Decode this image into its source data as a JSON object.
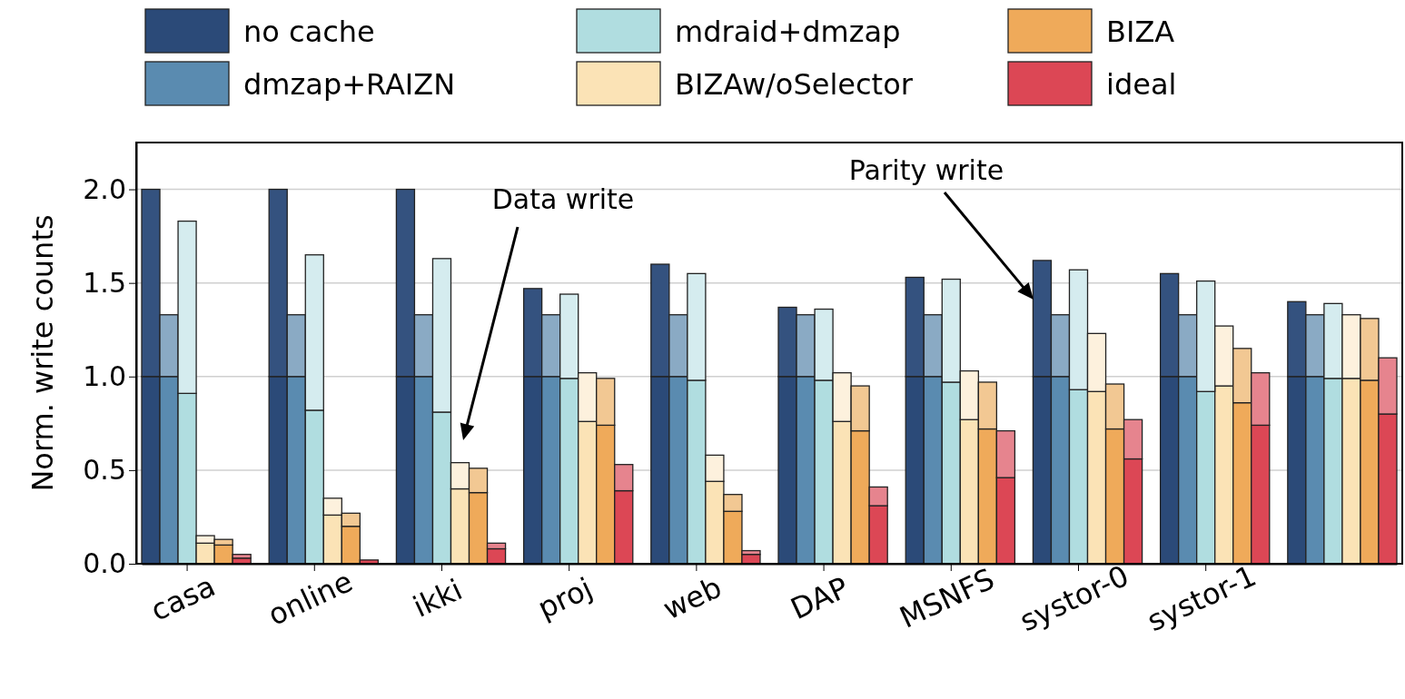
{
  "chart_data": {
    "type": "bar",
    "ylabel": "Norm. write counts",
    "stacked": true,
    "categories": [
      null,
      null,
      "casa",
      null,
      null,
      null,
      null,
      null,
      null,
      "online",
      null,
      null,
      null,
      null,
      null,
      null,
      "ikki",
      null,
      null,
      null,
      null,
      null,
      null,
      "proj",
      null,
      null,
      null,
      null,
      null,
      null,
      "web",
      null,
      null,
      null,
      null,
      null,
      null,
      "DAP",
      null,
      null,
      null,
      null,
      null,
      null,
      "MSNFS",
      null,
      null,
      null,
      null,
      null,
      null,
      "systor-0",
      null,
      null,
      null,
      null,
      null,
      null,
      "systor-1",
      null,
      null,
      null,
      null,
      null,
      null,
      null,
      null,
      null,
      null
    ],
    "ylim": [
      0,
      2.25
    ],
    "yticks": [
      {
        "value": 0,
        "label": "0.0"
      },
      {
        "value": 0.5,
        "label": "0.5"
      },
      {
        "value": 1,
        "label": "1.0"
      },
      {
        "value": 1.5,
        "label": "1.5"
      },
      {
        "value": 2,
        "label": "2.0"
      }
    ],
    "grid": "y",
    "legend": "top",
    "annotations": [
      "Data write",
      "Parity write"
    ],
    "series": [
      {
        "name": "no cache",
        "color": "#2b4a78",
        "values": [
          1,
          null,
          null,
          null,
          null,
          null,
          null,
          1,
          null,
          null,
          null,
          null,
          null,
          null,
          1,
          null,
          null,
          null,
          null,
          null,
          null,
          1,
          null,
          null,
          null,
          null,
          null,
          null,
          1,
          null,
          null,
          null,
          null,
          null,
          null,
          1,
          null,
          null,
          null,
          null,
          null,
          null,
          1,
          null,
          null,
          null,
          null,
          null,
          null,
          1,
          null,
          null,
          null,
          null,
          null,
          null,
          1,
          null,
          null,
          null,
          null,
          null,
          null,
          1,
          null,
          null,
          null,
          null,
          null
        ]
      },
      {
        "name": "dmzap+RAIZN",
        "color": "#5a8bb0",
        "values": [
          null,
          1,
          null,
          null,
          null,
          null,
          null,
          null,
          1,
          null,
          null,
          null,
          null,
          null,
          null,
          1,
          null,
          null,
          null,
          null,
          null,
          null,
          1,
          null,
          null,
          null,
          null,
          null,
          null,
          1,
          null,
          null,
          null,
          null,
          null,
          null,
          1,
          null,
          null,
          null,
          null,
          null,
          null,
          1,
          null,
          null,
          null,
          null,
          null,
          null,
          1,
          null,
          null,
          null,
          null,
          null,
          null,
          1,
          null,
          null,
          null,
          null,
          null,
          null,
          1,
          null,
          null,
          null,
          null
        ]
      },
      {
        "name": "mdraid+dmzap",
        "color": "#b0dde0",
        "values": [
          null,
          null,
          0.91,
          null,
          null,
          null,
          null,
          null,
          null,
          0.82,
          null,
          null,
          null,
          null,
          null,
          null,
          0.81,
          null,
          null,
          null,
          null,
          null,
          null,
          0.99,
          null,
          null,
          null,
          null,
          null,
          null,
          0.98,
          null,
          null,
          null,
          null,
          null,
          null,
          0.98,
          null,
          null,
          null,
          null,
          null,
          null,
          0.97,
          null,
          null,
          null,
          null,
          null,
          null,
          0.93,
          null,
          null,
          null,
          null,
          null,
          null,
          0.92,
          null,
          null,
          null,
          null,
          null,
          null,
          0.99,
          null,
          null,
          null
        ]
      },
      {
        "name": "BIZAw/oSelector",
        "color": "#fbe3b6",
        "values": [
          null,
          null,
          null,
          0.11,
          null,
          null,
          null,
          null,
          null,
          null,
          0.26,
          null,
          null,
          null,
          null,
          null,
          null,
          0.4,
          null,
          null,
          null,
          null,
          null,
          null,
          0.76,
          null,
          null,
          null,
          null,
          null,
          null,
          0.44,
          null,
          null,
          null,
          null,
          null,
          null,
          0.76,
          null,
          null,
          null,
          null,
          null,
          null,
          0.77,
          null,
          null,
          null,
          null,
          null,
          null,
          0.92,
          null,
          null,
          null,
          null,
          null,
          null,
          0.95,
          null,
          null,
          null,
          null,
          null,
          null,
          0.99,
          null,
          null
        ]
      },
      {
        "name": "BIZA",
        "color": "#efaa5a",
        "values": [
          null,
          null,
          null,
          null,
          0.1,
          null,
          null,
          null,
          null,
          null,
          null,
          0.2,
          null,
          null,
          null,
          null,
          null,
          null,
          0.38,
          null,
          null,
          null,
          null,
          null,
          null,
          0.74,
          null,
          null,
          null,
          null,
          null,
          null,
          0.28,
          null,
          null,
          null,
          null,
          null,
          null,
          0.71,
          null,
          null,
          null,
          null,
          null,
          null,
          0.72,
          null,
          null,
          null,
          null,
          null,
          null,
          0.72,
          null,
          null,
          null,
          null,
          null,
          null,
          0.86,
          null,
          null,
          null,
          null,
          null,
          null,
          0.98,
          null
        ]
      },
      {
        "name": "ideal",
        "color": "#dc4755",
        "values": [
          null,
          null,
          null,
          null,
          null,
          0.03,
          null,
          null,
          null,
          null,
          null,
          null,
          0.02,
          null,
          null,
          null,
          null,
          null,
          null,
          0.08,
          null,
          null,
          null,
          null,
          null,
          null,
          0.39,
          null,
          null,
          null,
          null,
          null,
          null,
          0.05,
          null,
          null,
          null,
          null,
          null,
          null,
          0.31,
          null,
          null,
          null,
          null,
          null,
          null,
          0.46,
          null,
          null,
          null,
          null,
          null,
          null,
          0.56,
          null,
          null,
          null,
          null,
          null,
          null,
          0.74,
          null,
          null,
          null,
          null,
          null,
          null,
          0.8
        ]
      },
      {
        "color": "#34527f",
        "values": [
          1,
          null,
          null,
          null,
          null,
          null,
          null,
          1,
          null,
          null,
          null,
          null,
          null,
          null,
          1,
          null,
          null,
          null,
          null,
          null,
          null,
          0.47,
          null,
          null,
          null,
          null,
          null,
          null,
          0.6,
          null,
          null,
          null,
          null,
          null,
          null,
          0.37,
          null,
          null,
          null,
          null,
          null,
          null,
          0.53,
          null,
          null,
          null,
          null,
          null,
          null,
          0.62,
          null,
          null,
          null,
          null,
          null,
          null,
          0.55,
          null,
          null,
          null,
          null,
          null,
          null,
          0.4,
          null,
          null,
          null,
          null,
          null
        ]
      },
      {
        "color": "#8aaac4",
        "values": [
          null,
          0.33,
          null,
          null,
          null,
          null,
          null,
          null,
          0.33,
          null,
          null,
          null,
          null,
          null,
          null,
          0.33,
          null,
          null,
          null,
          null,
          null,
          null,
          0.33,
          null,
          null,
          null,
          null,
          null,
          null,
          0.33,
          null,
          null,
          null,
          null,
          null,
          null,
          0.33,
          null,
          null,
          null,
          null,
          null,
          null,
          0.33,
          null,
          null,
          null,
          null,
          null,
          null,
          0.33,
          null,
          null,
          null,
          null,
          null,
          null,
          0.33,
          null,
          null,
          null,
          null,
          null,
          null,
          0.33,
          null,
          null,
          null,
          null
        ]
      },
      {
        "color": "#d5ecef",
        "values": [
          null,
          null,
          0.92,
          null,
          null,
          null,
          null,
          null,
          null,
          0.83,
          null,
          null,
          null,
          null,
          null,
          null,
          0.82,
          null,
          null,
          null,
          null,
          null,
          null,
          0.45,
          null,
          null,
          null,
          null,
          null,
          null,
          0.57,
          null,
          null,
          null,
          null,
          null,
          null,
          0.38,
          null,
          null,
          null,
          null,
          null,
          null,
          0.55,
          null,
          null,
          null,
          null,
          null,
          null,
          0.64,
          null,
          null,
          null,
          null,
          null,
          null,
          0.59,
          null,
          null,
          null,
          null,
          null,
          null,
          0.4,
          null,
          null,
          null
        ]
      },
      {
        "color": "#fdf1dd",
        "values": [
          null,
          null,
          null,
          0.04,
          null,
          null,
          null,
          null,
          null,
          null,
          0.09,
          null,
          null,
          null,
          null,
          null,
          null,
          0.14,
          null,
          null,
          null,
          null,
          null,
          null,
          0.26,
          null,
          null,
          null,
          null,
          null,
          null,
          0.14,
          null,
          null,
          null,
          null,
          null,
          null,
          0.26,
          null,
          null,
          null,
          null,
          null,
          null,
          0.26,
          null,
          null,
          null,
          null,
          null,
          null,
          0.31,
          null,
          null,
          null,
          null,
          null,
          null,
          0.32,
          null,
          null,
          null,
          null,
          null,
          null,
          0.34,
          null,
          null
        ]
      },
      {
        "color": "#f2c893",
        "values": [
          null,
          null,
          null,
          null,
          0.03,
          null,
          null,
          null,
          null,
          null,
          null,
          0.07,
          null,
          null,
          null,
          null,
          null,
          null,
          0.13,
          null,
          null,
          null,
          null,
          null,
          null,
          0.25,
          null,
          null,
          null,
          null,
          null,
          null,
          0.09,
          null,
          null,
          null,
          null,
          null,
          null,
          0.24,
          null,
          null,
          null,
          null,
          null,
          null,
          0.25,
          null,
          null,
          null,
          null,
          null,
          null,
          0.24,
          null,
          null,
          null,
          null,
          null,
          null,
          0.29,
          null,
          null,
          null,
          null,
          null,
          null,
          0.33,
          null
        ]
      },
      {
        "color": "#e6848e",
        "values": [
          null,
          null,
          null,
          null,
          null,
          0.02,
          null,
          null,
          null,
          null,
          null,
          null,
          null,
          null,
          null,
          null,
          null,
          null,
          null,
          0.03,
          null,
          null,
          null,
          null,
          null,
          null,
          0.14,
          null,
          null,
          null,
          null,
          null,
          null,
          0.02,
          null,
          null,
          null,
          null,
          null,
          null,
          0.1,
          null,
          null,
          null,
          null,
          null,
          null,
          0.25,
          null,
          null,
          null,
          null,
          null,
          null,
          0.21,
          null,
          null,
          null,
          null,
          null,
          null,
          0.28,
          null,
          null,
          null,
          null,
          null,
          null,
          0.3
        ]
      }
    ]
  }
}
